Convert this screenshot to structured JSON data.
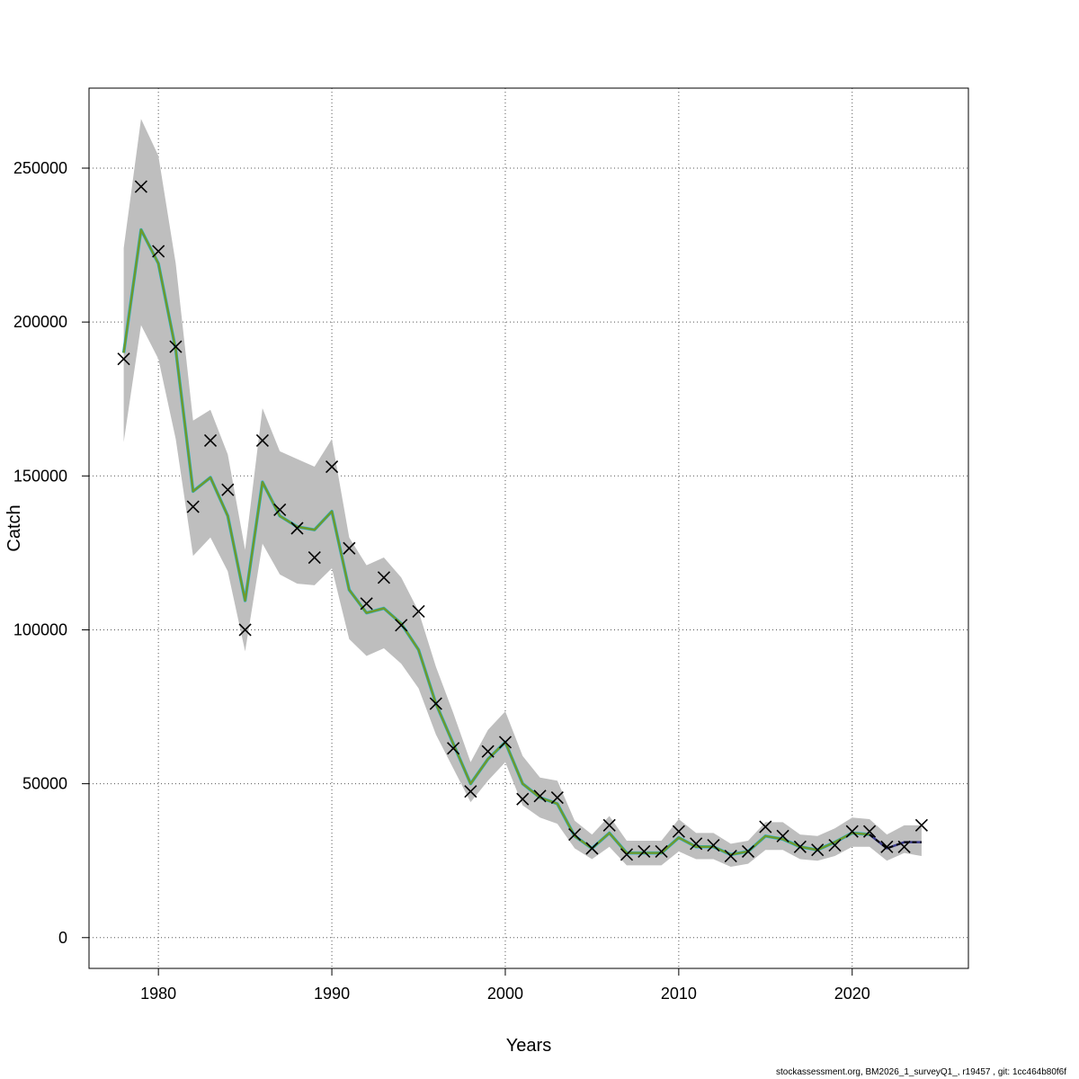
{
  "chart_data": {
    "type": "line",
    "title": "",
    "xlabel": "Years",
    "ylabel": "Catch",
    "xlim": [
      1976,
      2026.7
    ],
    "ylim": [
      -10000,
      276000
    ],
    "x_ticks": [
      1980,
      1990,
      2000,
      2010,
      2020
    ],
    "y_ticks": [
      0,
      50000,
      100000,
      150000,
      200000,
      250000
    ],
    "grid": true,
    "colors": {
      "band": "#bebebe",
      "estimate": "#6e9a2c",
      "estimate_shadow": "#1fb5e0",
      "observation": "#000000",
      "prediction_line": "#3a3a8c",
      "prediction_dashed": "#000000"
    },
    "band": {
      "x": [
        1978,
        1979,
        1980,
        1981,
        1982,
        1983,
        1984,
        1985,
        1986,
        1987,
        1988,
        1989,
        1990,
        1991,
        1992,
        1993,
        1994,
        1995,
        1996,
        1997,
        1998,
        1999,
        2000,
        2001,
        2002,
        2003,
        2004,
        2005,
        2006,
        2007,
        2008,
        2009,
        2010,
        2011,
        2012,
        2013,
        2014,
        2015,
        2016,
        2017,
        2018,
        2019,
        2020,
        2021,
        2022,
        2023,
        2024
      ],
      "low": [
        161000,
        199000,
        188000,
        162000,
        124000,
        130000,
        119000,
        93000,
        128000,
        118000,
        115000,
        114500,
        120000,
        97000,
        91500,
        94000,
        89000,
        81000,
        66000,
        55000,
        44000,
        51000,
        57000,
        43000,
        39000,
        37000,
        29000,
        25500,
        29500,
        23500,
        23500,
        23500,
        28000,
        25500,
        25500,
        23000,
        24000,
        28500,
        28500,
        25500,
        25000,
        26500,
        29500,
        29500,
        25000,
        27500,
        26500
      ],
      "high": [
        224000,
        266000,
        254000,
        219000,
        168000,
        171500,
        157000,
        126000,
        172000,
        158000,
        155500,
        153000,
        162000,
        130000,
        121000,
        123500,
        117000,
        106000,
        88000,
        73000,
        57000,
        67500,
        73500,
        59000,
        52000,
        51000,
        38000,
        33500,
        39500,
        31500,
        31500,
        31500,
        38500,
        34000,
        34000,
        30500,
        31500,
        37500,
        37500,
        33500,
        33000,
        35500,
        39000,
        38500,
        33500,
        36500,
        36500
      ]
    },
    "estimate": {
      "x": [
        1978,
        1979,
        1980,
        1981,
        1982,
        1983,
        1984,
        1985,
        1986,
        1987,
        1988,
        1989,
        1990,
        1991,
        1992,
        1993,
        1994,
        1995,
        1996,
        1997,
        1998,
        1999,
        2000,
        2001,
        2002,
        2003,
        2004,
        2005,
        2006,
        2007,
        2008,
        2009,
        2010,
        2011,
        2012,
        2013,
        2014,
        2015,
        2016,
        2017,
        2018,
        2019,
        2020,
        2021
      ],
      "values": [
        190000,
        230000,
        219000,
        191000,
        145000,
        149500,
        137000,
        109500,
        148000,
        137000,
        133500,
        132500,
        138500,
        113000,
        105500,
        107000,
        102000,
        93500,
        76000,
        63000,
        50000,
        58000,
        63500,
        50000,
        45500,
        43500,
        33000,
        29000,
        34000,
        27500,
        27500,
        27500,
        32500,
        29500,
        29500,
        27000,
        28000,
        33000,
        32000,
        29500,
        28500,
        31000,
        34000,
        33500
      ]
    },
    "prediction": {
      "x": [
        2021,
        2022,
        2023,
        2024
      ],
      "values": [
        33500,
        29000,
        31000,
        31000
      ]
    },
    "observations": {
      "x": [
        1978,
        1979,
        1980,
        1981,
        1982,
        1983,
        1984,
        1985,
        1986,
        1987,
        1988,
        1989,
        1990,
        1991,
        1992,
        1993,
        1994,
        1995,
        1996,
        1997,
        1998,
        1999,
        2000,
        2001,
        2002,
        2003,
        2004,
        2005,
        2006,
        2007,
        2008,
        2009,
        2010,
        2011,
        2012,
        2013,
        2014,
        2015,
        2016,
        2017,
        2018,
        2019,
        2020,
        2021,
        2022,
        2023,
        2024
      ],
      "values": [
        188000,
        244000,
        223000,
        192000,
        140000,
        161500,
        145500,
        100000,
        161500,
        139000,
        133000,
        123500,
        153000,
        126500,
        108500,
        117000,
        101500,
        106000,
        76000,
        61500,
        47500,
        60500,
        63500,
        45000,
        46000,
        45500,
        33500,
        29000,
        36500,
        27000,
        28000,
        28000,
        34500,
        30500,
        30000,
        26500,
        28000,
        36000,
        33000,
        29500,
        28500,
        30000,
        34500,
        34500,
        29500,
        29500,
        36500
      ]
    }
  },
  "footer_text": "stockassessment.org, BM2026_1_surveyQ1_, r19457 , git: 1cc464b80f6f"
}
